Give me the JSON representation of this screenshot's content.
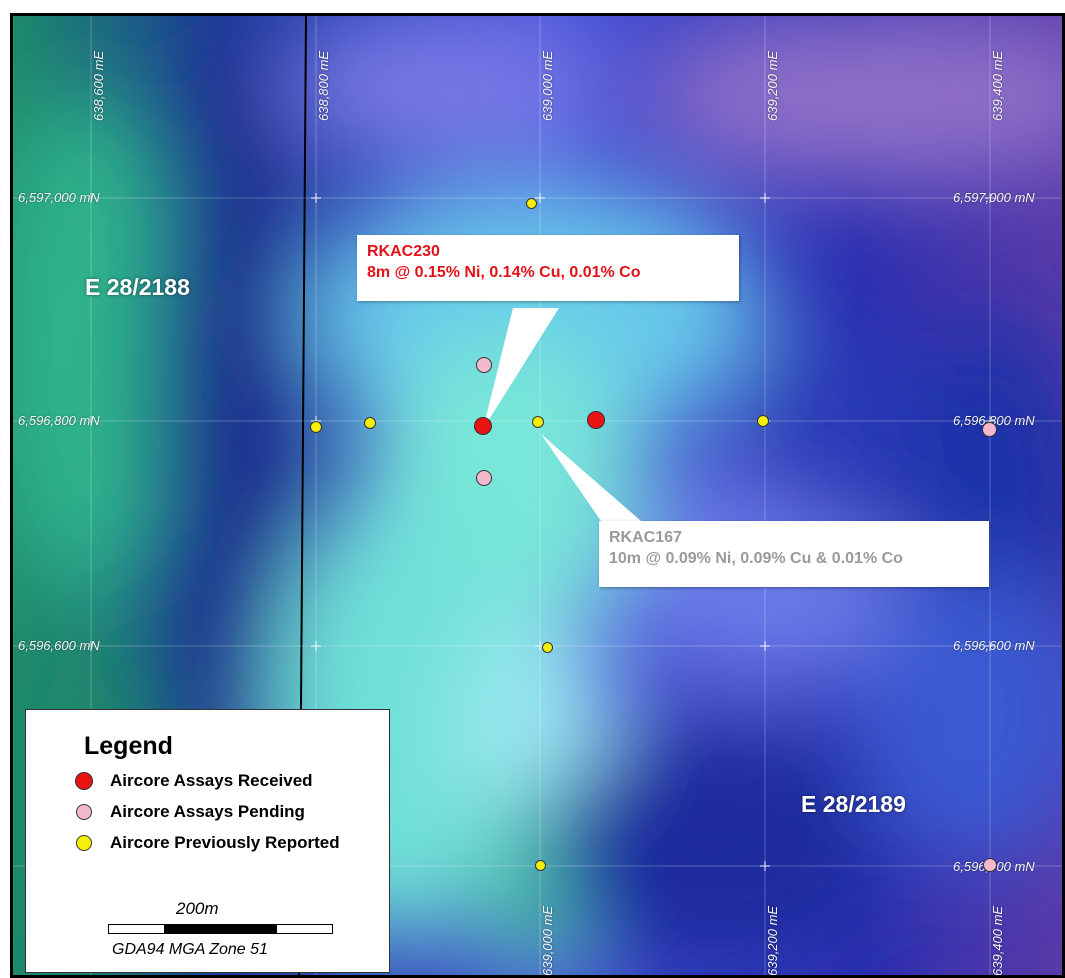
{
  "map": {
    "easting_labels_top": [
      "638,600 mE",
      "638,800 mE",
      "639,000 mE",
      "639,200 mE",
      "639,400 mE"
    ],
    "easting_labels_bottom": [
      "639,000 mE",
      "639,200 mE",
      "639,400 mE"
    ],
    "northing_labels_left": [
      "6,597,000 mN",
      "6,596,800 mN",
      "6,596,600 mN"
    ],
    "northing_labels_right": [
      "6,597,000 mN",
      "6,596,800 mN",
      "6,596,600 mN",
      "6,596,400 mN"
    ],
    "tenements": [
      "E 28/2188",
      "E 28/2189"
    ],
    "colors": {
      "received": "#e81414",
      "pending": "#f2b8cc",
      "previous": "#f5ef0a",
      "callout_red": "#e2121a",
      "callout_grey": "#9a9a9a"
    }
  },
  "callouts": {
    "rkac230": {
      "hole": "RKAC230",
      "intercept": "8m @ 0.15% Ni, 0.14% Cu, 0.01% Co"
    },
    "rkac167": {
      "hole": "RKAC167",
      "intercept": "10m @ 0.09% Ni, 0.09% Cu & 0.01% Co"
    }
  },
  "legend": {
    "title": "Legend",
    "items": [
      "Aircore Assays Received",
      "Aircore Assays Pending",
      "Aircore Previously Reported"
    ],
    "scale_label": "200m",
    "projection": "GDA94 MGA Zone 51"
  }
}
